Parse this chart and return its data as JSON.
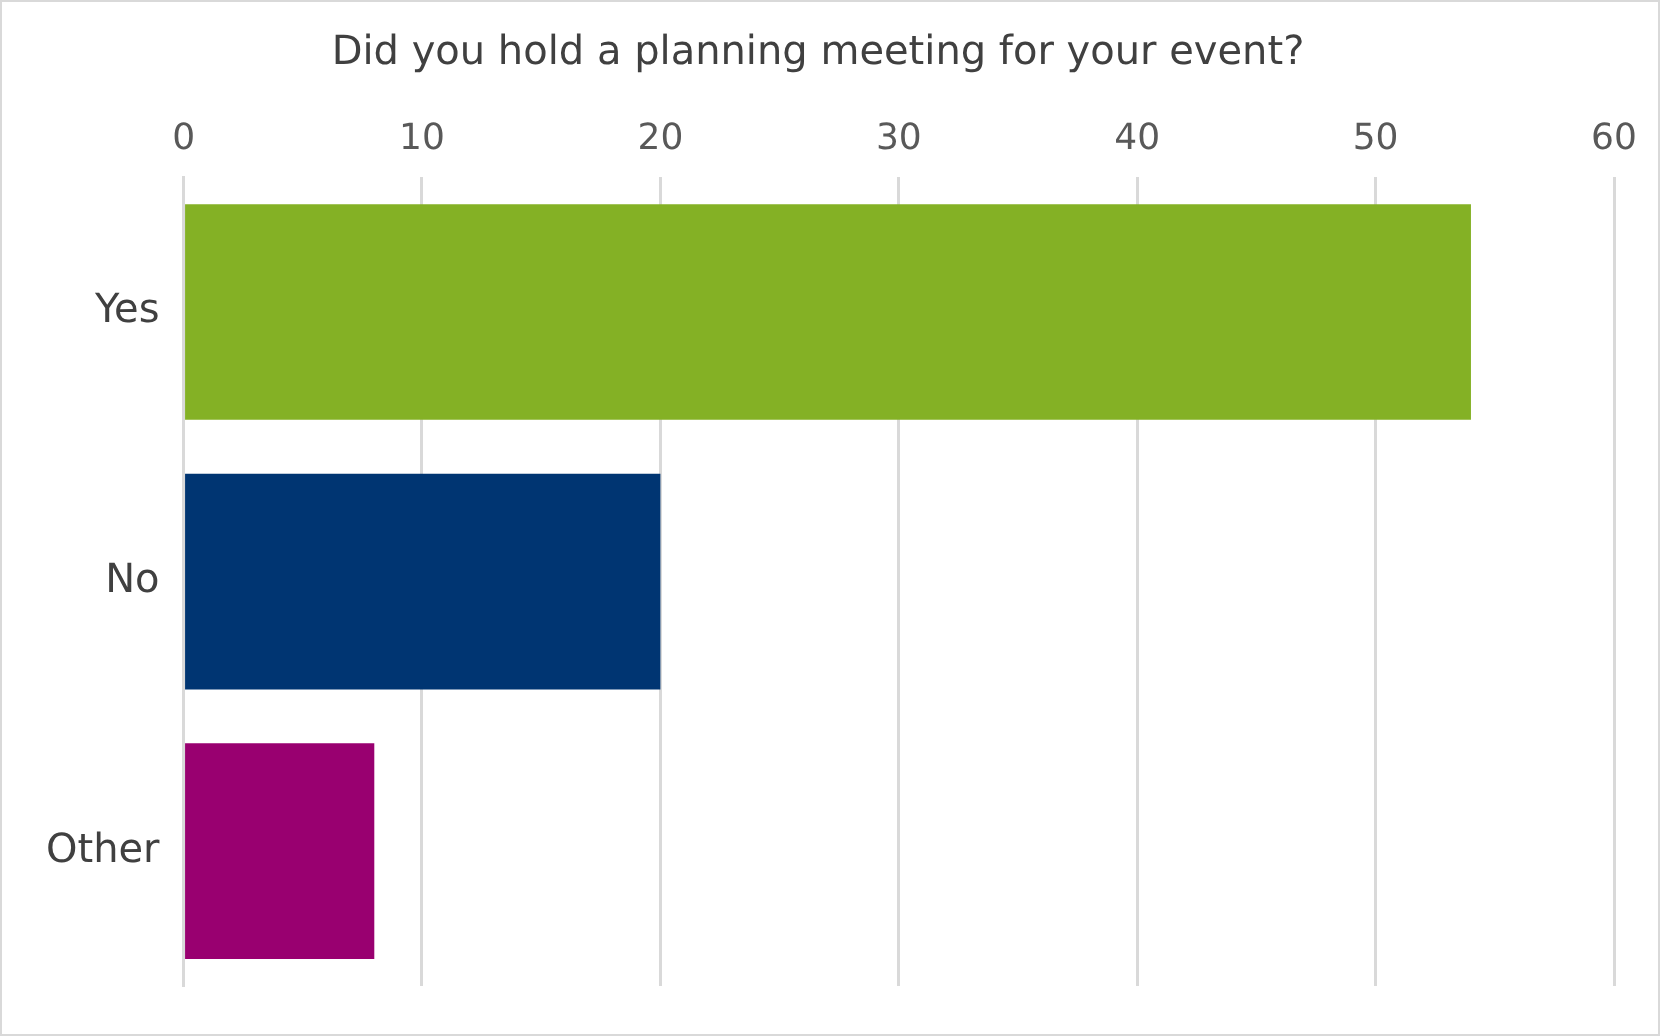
{
  "chart_data": {
    "type": "bar",
    "orientation": "horizontal",
    "title": "Did you hold a planning meeting for your event?",
    "categories": [
      "Yes",
      "No",
      "Other"
    ],
    "values": [
      54,
      20,
      8
    ],
    "colors": [
      "#84b125",
      "#003572",
      "#990070"
    ],
    "xlim": [
      0,
      60
    ],
    "xticks": [
      0,
      10,
      20,
      30,
      40,
      50,
      60
    ],
    "grid": "x"
  }
}
